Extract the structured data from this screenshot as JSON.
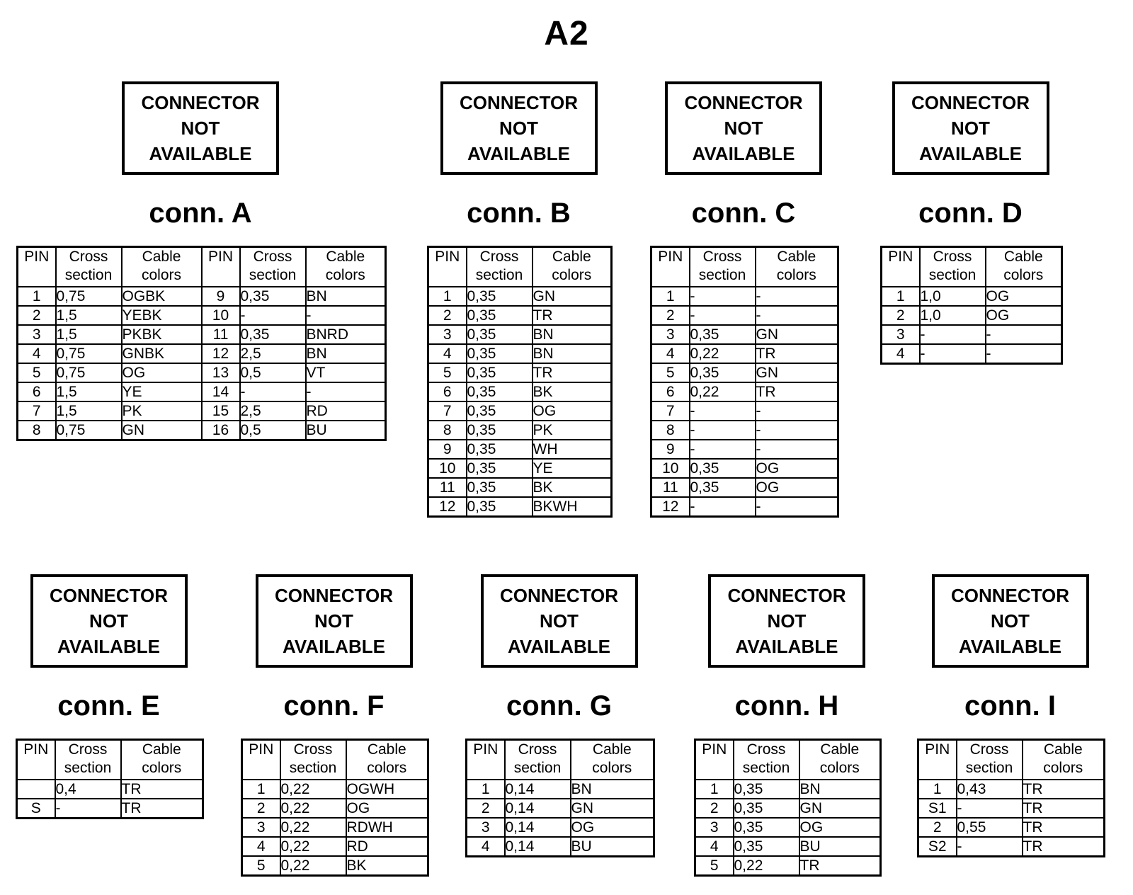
{
  "title": "A2",
  "not_available": {
    "lines": [
      "CONNECTOR",
      "NOT",
      "AVAILABLE"
    ]
  },
  "headers": {
    "pin": "PIN",
    "cross_section": "Cross\nsection",
    "cable_colors": "Cable\ncolors"
  },
  "connectors": [
    {
      "name": "conn. A",
      "rows": [
        [
          "1",
          "0,75",
          "OGBK",
          "9",
          "0,35",
          "BN"
        ],
        [
          "2",
          "1,5",
          "YEBK",
          "10",
          "-",
          "-"
        ],
        [
          "3",
          "1,5",
          "PKBK",
          "11",
          "0,35",
          "BNRD"
        ],
        [
          "4",
          "0,75",
          "GNBK",
          "12",
          "2,5",
          "BN"
        ],
        [
          "5",
          "0,75",
          "OG",
          "13",
          "0,5",
          "VT"
        ],
        [
          "6",
          "1,5",
          "YE",
          "14",
          "-",
          "-"
        ],
        [
          "7",
          "1,5",
          "PK",
          "15",
          "2,5",
          "RD"
        ],
        [
          "8",
          "0,75",
          "GN",
          "16",
          "0,5",
          "BU"
        ]
      ]
    },
    {
      "name": "conn. B",
      "rows": [
        [
          "1",
          "0,35",
          "GN"
        ],
        [
          "2",
          "0,35",
          "TR"
        ],
        [
          "3",
          "0,35",
          "BN"
        ],
        [
          "4",
          "0,35",
          "BN"
        ],
        [
          "5",
          "0,35",
          "TR"
        ],
        [
          "6",
          "0,35",
          "BK"
        ],
        [
          "7",
          "0,35",
          "OG"
        ],
        [
          "8",
          "0,35",
          "PK"
        ],
        [
          "9",
          "0,35",
          "WH"
        ],
        [
          "10",
          "0,35",
          "YE"
        ],
        [
          "11",
          "0,35",
          "BK"
        ],
        [
          "12",
          "0,35",
          "BKWH"
        ]
      ]
    },
    {
      "name": "conn. C",
      "rows": [
        [
          "1",
          "-",
          "-"
        ],
        [
          "2",
          "-",
          "-"
        ],
        [
          "3",
          "0,35",
          "GN"
        ],
        [
          "4",
          "0,22",
          "TR"
        ],
        [
          "5",
          "0,35",
          "GN"
        ],
        [
          "6",
          "0,22",
          "TR"
        ],
        [
          "7",
          "-",
          "-"
        ],
        [
          "8",
          "-",
          "-"
        ],
        [
          "9",
          "-",
          "-"
        ],
        [
          "10",
          "0,35",
          "OG"
        ],
        [
          "11",
          "0,35",
          "OG"
        ],
        [
          "12",
          "-",
          "-"
        ]
      ]
    },
    {
      "name": "conn. D",
      "rows": [
        [
          "1",
          "1,0",
          "OG"
        ],
        [
          "2",
          "1,0",
          "OG"
        ],
        [
          "3",
          "-",
          "-"
        ],
        [
          "4",
          "-",
          "-"
        ]
      ]
    },
    {
      "name": "conn. E",
      "rows": [
        [
          "",
          "0,4",
          "TR"
        ],
        [
          "S",
          "-",
          "TR"
        ]
      ]
    },
    {
      "name": "conn. F",
      "rows": [
        [
          "1",
          "0,22",
          "OGWH"
        ],
        [
          "2",
          "0,22",
          "OG"
        ],
        [
          "3",
          "0,22",
          "RDWH"
        ],
        [
          "4",
          "0,22",
          "RD"
        ],
        [
          "5",
          "0,22",
          "BK"
        ]
      ]
    },
    {
      "name": "conn. G",
      "rows": [
        [
          "1",
          "0,14",
          "BN"
        ],
        [
          "2",
          "0,14",
          "GN"
        ],
        [
          "3",
          "0,14",
          "OG"
        ],
        [
          "4",
          "0,14",
          "BU"
        ]
      ]
    },
    {
      "name": "conn. H",
      "rows": [
        [
          "1",
          "0,35",
          "BN"
        ],
        [
          "2",
          "0,35",
          "GN"
        ],
        [
          "3",
          "0,35",
          "OG"
        ],
        [
          "4",
          "0,35",
          "BU"
        ],
        [
          "5",
          "0,22",
          "TR"
        ]
      ]
    },
    {
      "name": "conn. I",
      "rows": [
        [
          "1",
          "0,43",
          "TR"
        ],
        [
          "S1",
          "-",
          "TR"
        ],
        [
          "2",
          "0,55",
          "TR"
        ],
        [
          "S2",
          "-",
          "TR"
        ]
      ]
    }
  ]
}
